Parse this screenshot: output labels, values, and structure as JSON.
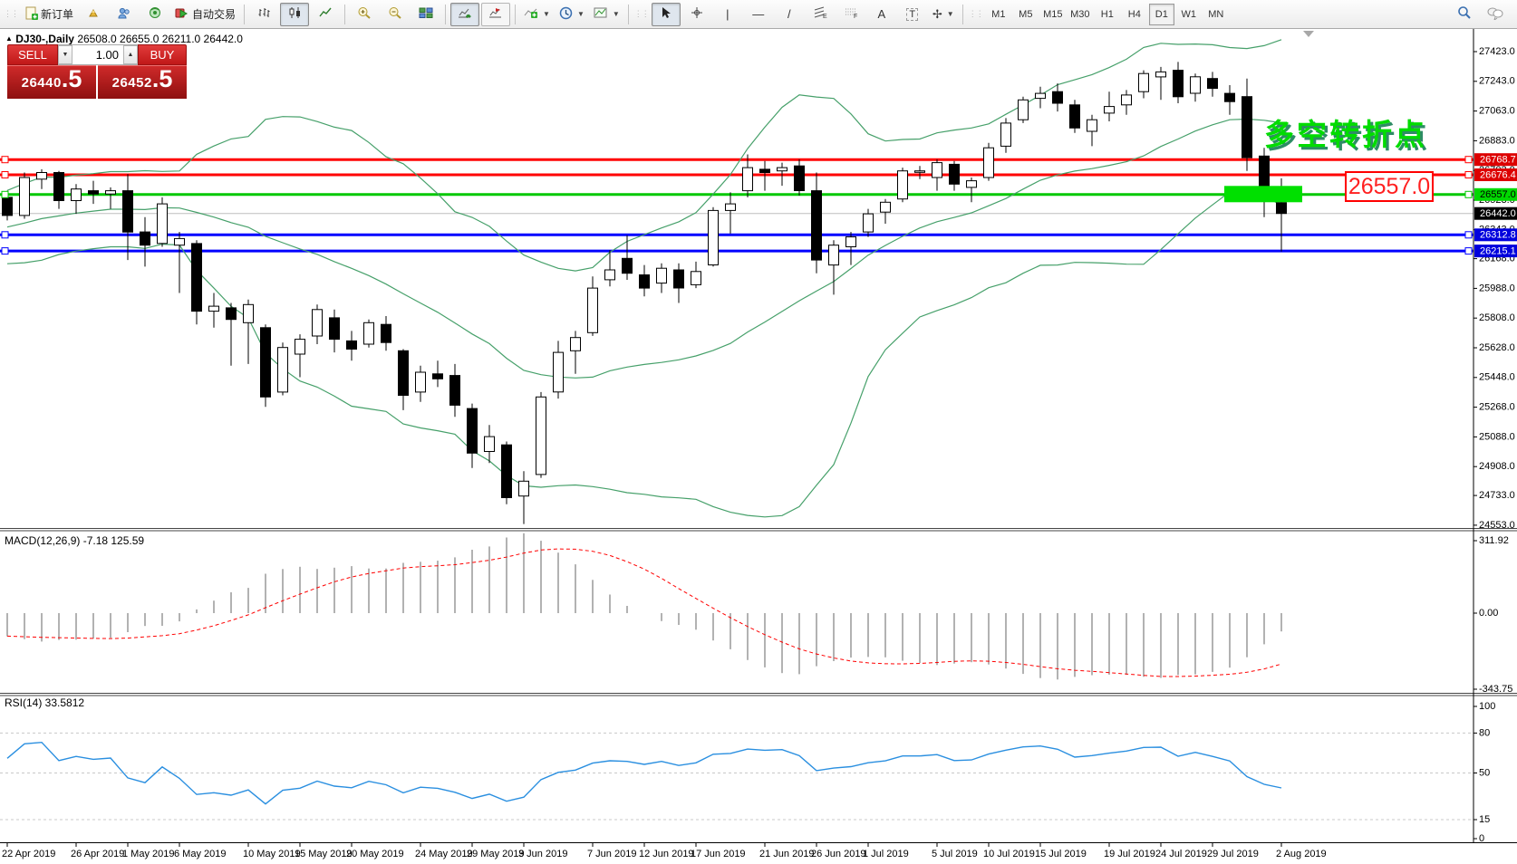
{
  "toolbar": {
    "new_order_label": "新订单",
    "auto_trading_label": "自动交易",
    "timeframes": [
      "M1",
      "M5",
      "M15",
      "M30",
      "H1",
      "H4",
      "D1",
      "W1",
      "MN"
    ],
    "active_timeframe": "D1",
    "glyphs": {
      "vline": "|",
      "hline": "—",
      "trendline": "/",
      "fib_e": "E",
      "fib_f": "F",
      "text": "A",
      "label": "T",
      "arrows": "✢",
      "caret": "▼"
    }
  },
  "chart_header": {
    "collapse_arrow": "▲",
    "symbol": "DJ30-,Daily",
    "ohlc": "26508.0 26655.0 26211.0 26442.0"
  },
  "trade_panel": {
    "sell_label": "SELL",
    "buy_label": "BUY",
    "volume": "1.00",
    "down_arrow": "▼",
    "up_arrow": "▲",
    "sell_price_main": "26440",
    "sell_price_frac": ".5",
    "buy_price_main": "26452",
    "buy_price_frac": ".5"
  },
  "annotations": {
    "pivot_text": "多空转折点",
    "price_box_text": "26557.0"
  },
  "indicator_labels": {
    "macd": "MACD(12,26,9) -7.18 125.59",
    "rsi": "RSI(14) 33.5812"
  },
  "chart_data": {
    "type": "candlestick",
    "symbol": "DJ30",
    "period": "Daily",
    "colors": {
      "bull": "#ffffff",
      "bear": "#000000",
      "outline": "#000000",
      "bollinger": "#46a06a",
      "red_level": "#ff0000",
      "green_level": "#00c800",
      "blue_level": "#0000ff",
      "current_line": "#bdbdbd",
      "macd_hist": "#b2b2b2",
      "macd_signal": "#ff0000",
      "rsi_line": "#2a8fe0",
      "rsi_grid": "#c8c8c8",
      "highlight_rect": "#00e000"
    },
    "ohlc": [
      [
        "22 Apr 2019",
        26540,
        26580,
        26400,
        26430
      ],
      [
        "23 Apr 2019",
        26430,
        26690,
        26410,
        26660
      ],
      [
        "24 Apr 2019",
        26650,
        26710,
        26590,
        26690
      ],
      [
        "25 Apr 2019",
        26690,
        26700,
        26470,
        26520
      ],
      [
        "26 Apr 2019",
        26520,
        26620,
        26440,
        26590
      ],
      [
        "29 Apr 2019",
        26580,
        26640,
        26500,
        26560
      ],
      [
        "30 Apr 2019",
        26560,
        26600,
        26470,
        26580
      ],
      [
        "1 May 2019",
        26580,
        26680,
        26160,
        26330
      ],
      [
        "2 May 2019",
        26330,
        26420,
        26120,
        26250
      ],
      [
        "3 May 2019",
        26260,
        26540,
        26240,
        26500
      ],
      [
        "6 May 2019",
        26250,
        26330,
        25960,
        26290
      ],
      [
        "7 May 2019",
        26260,
        26280,
        25770,
        25850
      ],
      [
        "8 May 2019",
        25850,
        25960,
        25750,
        25880
      ],
      [
        "9 May 2019",
        25870,
        25900,
        25520,
        25800
      ],
      [
        "10 May 2019",
        25780,
        25920,
        25530,
        25890
      ],
      [
        "13 May 2019",
        25750,
        25770,
        25270,
        25330
      ],
      [
        "14 May 2019",
        25360,
        25660,
        25340,
        25630
      ],
      [
        "15 May 2019",
        25590,
        25710,
        25450,
        25680
      ],
      [
        "16 May 2019",
        25700,
        25890,
        25650,
        25860
      ],
      [
        "17 May 2019",
        25810,
        25860,
        25600,
        25680
      ],
      [
        "20 May 2019",
        25670,
        25730,
        25550,
        25620
      ],
      [
        "21 May 2019",
        25650,
        25800,
        25630,
        25780
      ],
      [
        "22 May 2019",
        25770,
        25820,
        25610,
        25660
      ],
      [
        "23 May 2019",
        25610,
        25620,
        25250,
        25340
      ],
      [
        "24 May 2019",
        25360,
        25520,
        25300,
        25480
      ],
      [
        "27 May 2019",
        25470,
        25550,
        25390,
        25440
      ],
      [
        "28 May 2019",
        25460,
        25530,
        25210,
        25280
      ],
      [
        "29 May 2019",
        25260,
        25290,
        24900,
        24990
      ],
      [
        "30 May 2019",
        25000,
        25160,
        24930,
        25090
      ],
      [
        "31 May 2019",
        25040,
        25060,
        24680,
        24720
      ],
      [
        "3 Jun 2019",
        24730,
        24880,
        24560,
        24820
      ],
      [
        "4 Jun 2019",
        24860,
        25360,
        24840,
        25330
      ],
      [
        "5 Jun 2019",
        25360,
        25670,
        25320,
        25600
      ],
      [
        "6 Jun 2019",
        25610,
        25730,
        25470,
        25690
      ],
      [
        "7 Jun 2019",
        25720,
        26060,
        25700,
        25990
      ],
      [
        "10 Jun 2019",
        26040,
        26220,
        26000,
        26100
      ],
      [
        "11 Jun 2019",
        26170,
        26310,
        26040,
        26080
      ],
      [
        "12 Jun 2019",
        26070,
        26130,
        25940,
        25990
      ],
      [
        "13 Jun 2019",
        26020,
        26140,
        25960,
        26110
      ],
      [
        "14 Jun 2019",
        26100,
        26140,
        25900,
        25990
      ],
      [
        "17 Jun 2019",
        26010,
        26150,
        25990,
        26090
      ],
      [
        "18 Jun 2019",
        26130,
        26480,
        26120,
        26460
      ],
      [
        "19 Jun 2019",
        26460,
        26570,
        26320,
        26500
      ],
      [
        "20 Jun 2019",
        26580,
        26800,
        26540,
        26720
      ],
      [
        "21 Jun 2019",
        26710,
        26760,
        26580,
        26690
      ],
      [
        "24 Jun 2019",
        26700,
        26750,
        26610,
        26720
      ],
      [
        "25 Jun 2019",
        26730,
        26770,
        26550,
        26580
      ],
      [
        "26 Jun 2019",
        26580,
        26690,
        26080,
        26160
      ],
      [
        "27 Jun 2019",
        26130,
        26280,
        25950,
        26250
      ],
      [
        "28 Jun 2019",
        26240,
        26330,
        26130,
        26300
      ],
      [
        "1 Jul 2019",
        26330,
        26470,
        26300,
        26440
      ],
      [
        "2 Jul 2019",
        26450,
        26530,
        26380,
        26510
      ],
      [
        "3 Jul 2019",
        26530,
        26720,
        26510,
        26700
      ],
      [
        "4 Jul 2019",
        26700,
        26730,
        26650,
        26700
      ],
      [
        "5 Jul 2019",
        26660,
        26770,
        26580,
        26750
      ],
      [
        "8 Jul 2019",
        26740,
        26760,
        26580,
        26620
      ],
      [
        "9 Jul 2019",
        26600,
        26660,
        26510,
        26640
      ],
      [
        "10 Jul 2019",
        26660,
        26870,
        26640,
        26840
      ],
      [
        "11 Jul 2019",
        26850,
        27020,
        26810,
        26990
      ],
      [
        "12 Jul 2019",
        27010,
        27150,
        26990,
        27130
      ],
      [
        "15 Jul 2019",
        27140,
        27210,
        27080,
        27170
      ],
      [
        "16 Jul 2019",
        27180,
        27230,
        27060,
        27110
      ],
      [
        "17 Jul 2019",
        27100,
        27130,
        26930,
        26960
      ],
      [
        "18 Jul 2019",
        26940,
        27040,
        26850,
        27010
      ],
      [
        "19 Jul 2019",
        27050,
        27180,
        27000,
        27090
      ],
      [
        "22 Jul 2019",
        27100,
        27190,
        27040,
        27160
      ],
      [
        "23 Jul 2019",
        27180,
        27310,
        27140,
        27290
      ],
      [
        "24 Jul 2019",
        27270,
        27330,
        27130,
        27300
      ],
      [
        "25 Jul 2019",
        27310,
        27360,
        27110,
        27150
      ],
      [
        "26 Jul 2019",
        27170,
        27290,
        27120,
        27270
      ],
      [
        "29 Jul 2019",
        27260,
        27300,
        27150,
        27200
      ],
      [
        "30 Jul 2019",
        27170,
        27220,
        27040,
        27120
      ],
      [
        "31 Jul 2019",
        27150,
        27260,
        26700,
        26780
      ],
      [
        "1 Aug 2019",
        26790,
        26840,
        26420,
        26560
      ],
      [
        "2 Aug 2019",
        26508,
        26655,
        26211,
        26442
      ]
    ],
    "indicators": {
      "bollinger": {
        "period": 20,
        "deviation": 2
      },
      "macd": {
        "fast": 12,
        "slow": 26,
        "signal": 9,
        "current_main": -7.18,
        "current_signal": 125.59
      },
      "rsi": {
        "period": 14,
        "current": 33.5812
      }
    },
    "levels": [
      {
        "value": 26768.7,
        "color": "#ff0000",
        "width": 3,
        "tag_bg": "#dd0000",
        "tag_fg": "#ffffff"
      },
      {
        "value": 26676.4,
        "color": "#ff0000",
        "width": 3,
        "tag_bg": "#dd0000",
        "tag_fg": "#ffffff"
      },
      {
        "value": 26557.0,
        "color": "#00c800",
        "width": 3,
        "tag_bg": "#00d800",
        "tag_fg": "#000000"
      },
      {
        "value": 26312.8,
        "color": "#0000ff",
        "width": 3,
        "tag_bg": "#0000dd",
        "tag_fg": "#ffffff"
      },
      {
        "value": 26215.1,
        "color": "#0000ff",
        "width": 3,
        "tag_bg": "#0000dd",
        "tag_fg": "#ffffff"
      }
    ],
    "current_price": {
      "value": 26442.0,
      "tag_bg": "#000000",
      "tag_fg": "#ffffff"
    },
    "highlight_rect": {
      "from_index": 71,
      "to_index": 75,
      "center_price": 26557.0
    },
    "axes": {
      "price_ticks": [
        27423.0,
        27243.0,
        27063.0,
        26883.0,
        26703.0,
        26523.0,
        26343.0,
        26168.0,
        25988.0,
        25808.0,
        25628.0,
        25448.0,
        25268.0,
        25088.0,
        24908.0,
        24733.0,
        24553.0
      ],
      "macd_ticks": [
        {
          "t": "311.92",
          "v": 311.92
        },
        {
          "t": "0.00",
          "v": 0
        },
        {
          "t": "-343.75",
          "v": -343.75
        }
      ],
      "macd_range": [
        -343.75,
        311.92
      ],
      "rsi_ticks": [
        {
          "t": "100",
          "v": 100
        },
        {
          "t": "80",
          "v": 80
        },
        {
          "t": "50",
          "v": 50
        },
        {
          "t": "15",
          "v": 15
        },
        {
          "t": "0",
          "v": 0
        }
      ],
      "rsi_dashed_levels": [
        80,
        50,
        15
      ],
      "date_labels": [
        {
          "t": "22 Apr 2019",
          "i": 0
        },
        {
          "t": "26 Apr 2019",
          "i": 4
        },
        {
          "t": "1 May 2019",
          "i": 7
        },
        {
          "t": "6 May 2019",
          "i": 10
        },
        {
          "t": "10 May 2019",
          "i": 14
        },
        {
          "t": "15 May 2019",
          "i": 17
        },
        {
          "t": "20 May 2019",
          "i": 20
        },
        {
          "t": "24 May 2019",
          "i": 24
        },
        {
          "t": "29 May 2019",
          "i": 27
        },
        {
          "t": "3 Jun 2019",
          "i": 30
        },
        {
          "t": "7 Jun 2019",
          "i": 34
        },
        {
          "t": "12 Jun 2019",
          "i": 37
        },
        {
          "t": "17 Jun 2019",
          "i": 40
        },
        {
          "t": "21 Jun 2019",
          "i": 44
        },
        {
          "t": "26 Jun 2019",
          "i": 47
        },
        {
          "t": "1 Jul 2019",
          "i": 50
        },
        {
          "t": "5 Jul 2019",
          "i": 54
        },
        {
          "t": "10 Jul 2019",
          "i": 57
        },
        {
          "t": "15 Jul 2019",
          "i": 60
        },
        {
          "t": "19 Jul 2019",
          "i": 64
        },
        {
          "t": "24 Jul 2019",
          "i": 67
        },
        {
          "t": "29 Jul 2019",
          "i": 70
        },
        {
          "t": "2 Aug 2019",
          "i": 74
        }
      ]
    }
  }
}
